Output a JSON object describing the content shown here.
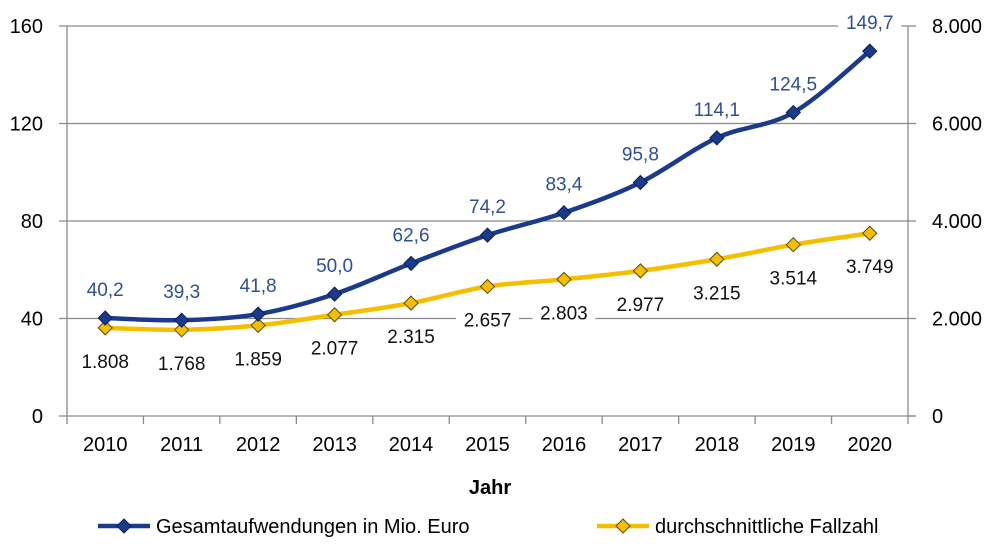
{
  "chart_data": {
    "type": "line",
    "title": "",
    "xlabel": "Jahr",
    "categories": [
      "2010",
      "2011",
      "2012",
      "2013",
      "2014",
      "2015",
      "2016",
      "2017",
      "2018",
      "2019",
      "2020"
    ],
    "y_left": {
      "ylim": [
        0,
        160
      ],
      "ticks": [
        "0",
        "40",
        "80",
        "120",
        "160"
      ],
      "tick_values": [
        0,
        40,
        80,
        120,
        160
      ]
    },
    "y_right": {
      "ylim": [
        0,
        8000
      ],
      "ticks": [
        "0",
        "2.000",
        "4.000",
        "6.000",
        "8.000"
      ],
      "tick_values": [
        0,
        2000,
        4000,
        6000,
        8000
      ]
    },
    "grid": true,
    "legend_position": "bottom",
    "series": [
      {
        "name": "Gesamtaufwendungen in Mio. Euro",
        "axis": "left",
        "color": "#1c3a8c",
        "label_color": "#2e4f96",
        "values": [
          40.2,
          39.3,
          41.8,
          50.0,
          62.6,
          74.2,
          83.4,
          95.8,
          114.1,
          124.5,
          149.7
        ],
        "labels": [
          "40,2",
          "39,3",
          "41,8",
          "50,0",
          "62,6",
          "74,2",
          "83,4",
          "95,8",
          "114,1",
          "124,5",
          "149,7"
        ]
      },
      {
        "name": "durchschnittliche Fallzahl",
        "axis": "right",
        "color": "#f5bf00",
        "label_color": "#111111",
        "values": [
          1808,
          1768,
          1859,
          2077,
          2315,
          2657,
          2803,
          2977,
          3215,
          3514,
          3749
        ],
        "labels": [
          "1.808",
          "1.768",
          "1.859",
          "2.077",
          "2.315",
          "2.657",
          "2.803",
          "2.977",
          "3.215",
          "3.514",
          "3.749"
        ]
      }
    ]
  }
}
